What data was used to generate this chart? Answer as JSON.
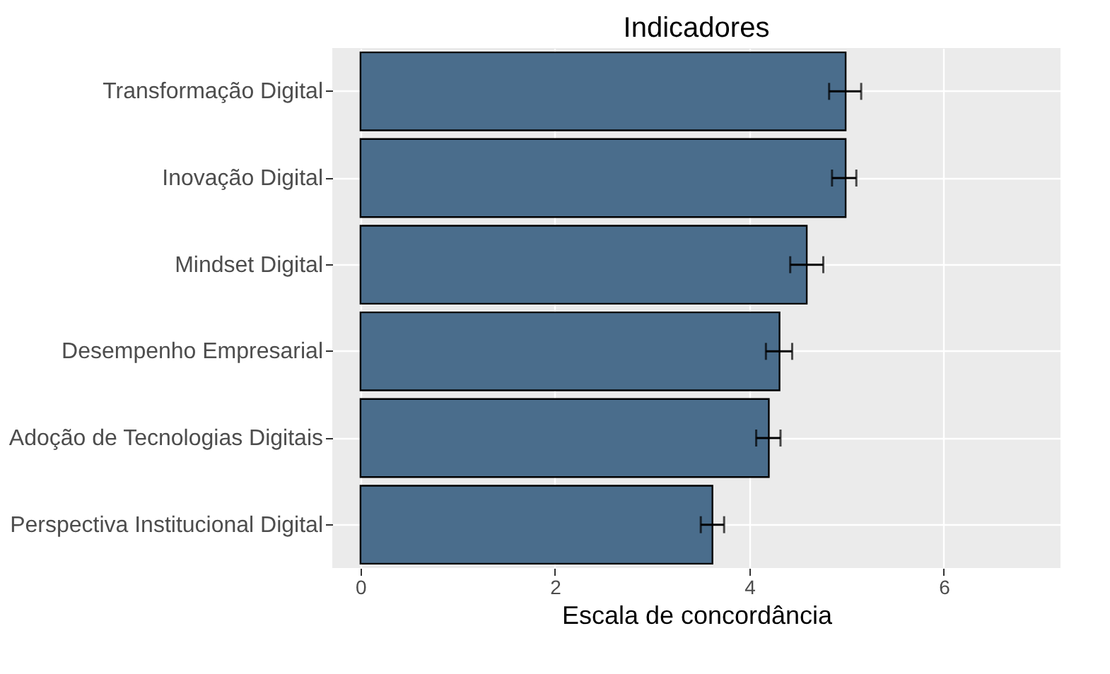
{
  "chart_data": {
    "type": "bar",
    "orientation": "horizontal",
    "title": "Indicadores",
    "xlabel": "Escala de concordância",
    "categories": [
      "Transformação Digital",
      "Inovação Digital",
      "Mindset Digital",
      "Desempenho Empresarial",
      "Adoção de Tecnologias Digitais",
      "Perspectiva Institucional Digital"
    ],
    "values": [
      4.99,
      4.99,
      4.59,
      4.31,
      4.2,
      3.62
    ],
    "errors": [
      [
        4.82,
        5.15
      ],
      [
        4.85,
        5.1
      ],
      [
        4.42,
        4.76
      ],
      [
        4.17,
        4.44
      ],
      [
        4.07,
        4.32
      ],
      [
        3.5,
        3.74
      ]
    ],
    "color": "#4a6d8c",
    "xlim": [
      -0.29,
      7.2
    ],
    "xticks": [
      0,
      2,
      4,
      6
    ],
    "grid": true
  }
}
